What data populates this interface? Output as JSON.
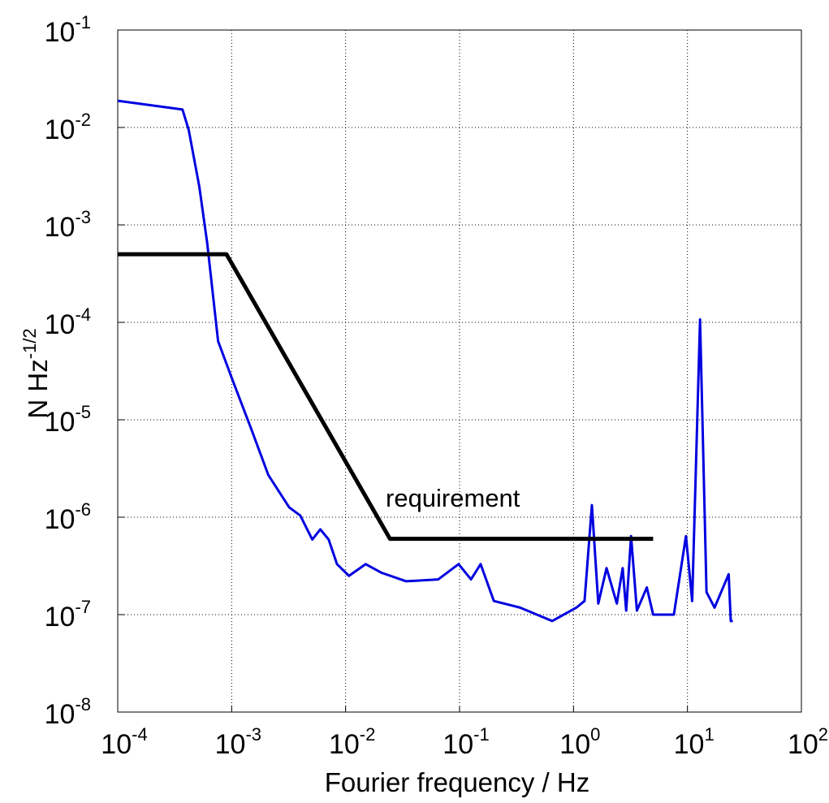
{
  "chart_data": {
    "type": "line",
    "xlabel": "Fourier frequency / Hz",
    "ylabel": "N Hz",
    "ylabel_exponent": "-1/2",
    "annotations": [
      "requirement"
    ],
    "xscale": "log",
    "yscale": "log",
    "grid": true,
    "xlim": [
      0.0001,
      100
    ],
    "ylim": [
      1e-08,
      0.1
    ],
    "xticks": [
      {
        "value": 0.0001,
        "label": "10",
        "exponent": "-4"
      },
      {
        "value": 0.001,
        "label": "10",
        "exponent": "-3"
      },
      {
        "value": 0.01,
        "label": "10",
        "exponent": "-2"
      },
      {
        "value": 0.1,
        "label": "10",
        "exponent": "-1"
      },
      {
        "value": 1,
        "label": "10",
        "exponent": "0"
      },
      {
        "value": 10,
        "label": "10",
        "exponent": "1"
      },
      {
        "value": 100,
        "label": "10",
        "exponent": "2"
      }
    ],
    "yticks": [
      {
        "value": 1e-08,
        "label": "10",
        "exponent": "-8"
      },
      {
        "value": 1e-07,
        "label": "10",
        "exponent": "-7"
      },
      {
        "value": 1e-06,
        "label": "10",
        "exponent": "-6"
      },
      {
        "value": 1e-05,
        "label": "10",
        "exponent": "-5"
      },
      {
        "value": 0.0001,
        "label": "10",
        "exponent": "-4"
      },
      {
        "value": 0.001,
        "label": "10",
        "exponent": "-3"
      },
      {
        "value": 0.01,
        "label": "10",
        "exponent": "-2"
      },
      {
        "value": 0.1,
        "label": "10",
        "exponent": "-1"
      }
    ],
    "series": [
      {
        "color": "#0000e0",
        "x": [
          0.0001,
          0.00037,
          0.00042,
          0.00052,
          0.00061,
          0.00076,
          0.001,
          0.0015,
          0.0021,
          0.0032,
          0.004,
          0.0051,
          0.006,
          0.0071,
          0.0084,
          0.0107,
          0.015,
          0.0205,
          0.034,
          0.065,
          0.098,
          0.126,
          0.153,
          0.2,
          0.34,
          0.65,
          1.06,
          1.25,
          1.45,
          1.65,
          1.95,
          2.4,
          2.7,
          2.9,
          3.2,
          3.6,
          4.4,
          5.0,
          7.6,
          9.7,
          11,
          12.9,
          14.7,
          17.3,
          23,
          24,
          25
        ],
        "values": [
          0.0188,
          0.0153,
          0.0094,
          0.00247,
          0.00065,
          6.4e-05,
          2.7e-05,
          7.8e-06,
          2.7e-06,
          1.26e-06,
          1.04e-06,
          5.9e-07,
          7.5e-07,
          5.9e-07,
          3.3e-07,
          2.5e-07,
          3.3e-07,
          2.7e-07,
          2.2e-07,
          2.3e-07,
          3.3e-07,
          2.3e-07,
          3.3e-07,
          1.38e-07,
          1.18e-07,
          8.6e-08,
          1.18e-07,
          1.38e-07,
          1.33e-06,
          1.3e-07,
          3e-07,
          1.3e-07,
          3e-07,
          1.1e-07,
          6.4e-07,
          1.1e-07,
          1.9e-07,
          1e-07,
          1e-07,
          6.4e-07,
          1.38e-07,
          0.000107,
          1.7e-07,
          1.18e-07,
          2.6e-07,
          8.6e-08,
          8.6e-08
        ]
      },
      {
        "color": "#000000",
        "x": [
          0.0001,
          0.0009,
          0.0245,
          5.0
        ],
        "values": [
          0.0005,
          0.0005,
          6e-07,
          6e-07
        ]
      }
    ]
  }
}
